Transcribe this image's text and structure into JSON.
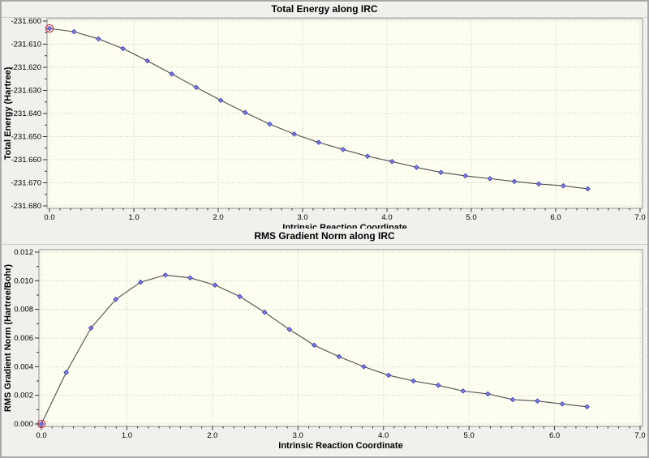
{
  "colors": {
    "window_bg": "#f0f0ec",
    "plot_bg": "#fdfdf0",
    "plot_border": "#8f8f8f",
    "grid": "#cdcdbc",
    "line": "#4d4d4d",
    "marker_fill": "#8787e8",
    "marker_stroke": "#4040b8",
    "highlight_ring": "#cc3c55",
    "tick": "#333333",
    "text": "#000000"
  },
  "chart_data": [
    {
      "type": "line",
      "title": "Total Energy along IRC",
      "xlabel": "Intrinsic Reaction Coordinate",
      "ylabel": "Total Energy (Hartree)",
      "xlim": [
        0.0,
        7.0
      ],
      "ylim": [
        -231.68,
        -231.6
      ],
      "x_major_step": 1.0,
      "y_major_step": 0.01,
      "x_minor_div": 8,
      "y_minor_div": 2,
      "x_tick_decimals": 1,
      "y_tick_decimals": 3,
      "grid": true,
      "legend": "none",
      "highlight_first_point": true,
      "x": [
        0.0,
        0.29,
        0.58,
        0.87,
        1.16,
        1.45,
        1.74,
        2.03,
        2.32,
        2.61,
        2.9,
        3.19,
        3.48,
        3.77,
        4.06,
        4.35,
        4.64,
        4.93,
        5.22,
        5.51,
        5.8,
        6.09,
        6.38
      ],
      "y": [
        -231.6032,
        -231.6046,
        -231.6077,
        -231.6119,
        -231.6172,
        -231.6229,
        -231.6287,
        -231.6343,
        -231.6396,
        -231.6446,
        -231.6489,
        -231.6525,
        -231.6556,
        -231.6585,
        -231.6608,
        -231.6633,
        -231.6655,
        -231.667,
        -231.6682,
        -231.6694,
        -231.6705,
        -231.6713,
        -231.6726
      ]
    },
    {
      "type": "line",
      "title": "RMS Gradient Norm along IRC",
      "xlabel": "Intrinsic Reaction Coordinate",
      "ylabel": "RMS Gradient Norm (Hartree/Bohr)",
      "xlim": [
        0.0,
        7.0
      ],
      "ylim": [
        0.0,
        0.012
      ],
      "x_major_step": 1.0,
      "y_major_step": 0.002,
      "x_minor_div": 8,
      "y_minor_div": 2,
      "x_tick_decimals": 1,
      "y_tick_decimals": 3,
      "grid": true,
      "legend": "none",
      "highlight_first_point": true,
      "x": [
        0.0,
        0.29,
        0.58,
        0.87,
        1.16,
        1.45,
        1.74,
        2.03,
        2.32,
        2.61,
        2.9,
        3.19,
        3.48,
        3.77,
        4.06,
        4.35,
        4.64,
        4.93,
        5.22,
        5.51,
        5.8,
        6.09,
        6.38
      ],
      "y": [
        0.0,
        0.0036,
        0.0067,
        0.0087,
        0.0099,
        0.0104,
        0.0102,
        0.0097,
        0.0089,
        0.0078,
        0.0066,
        0.0055,
        0.0047,
        0.004,
        0.0034,
        0.003,
        0.0027,
        0.0023,
        0.0021,
        0.0017,
        0.0016,
        0.0014,
        0.0012
      ]
    }
  ]
}
